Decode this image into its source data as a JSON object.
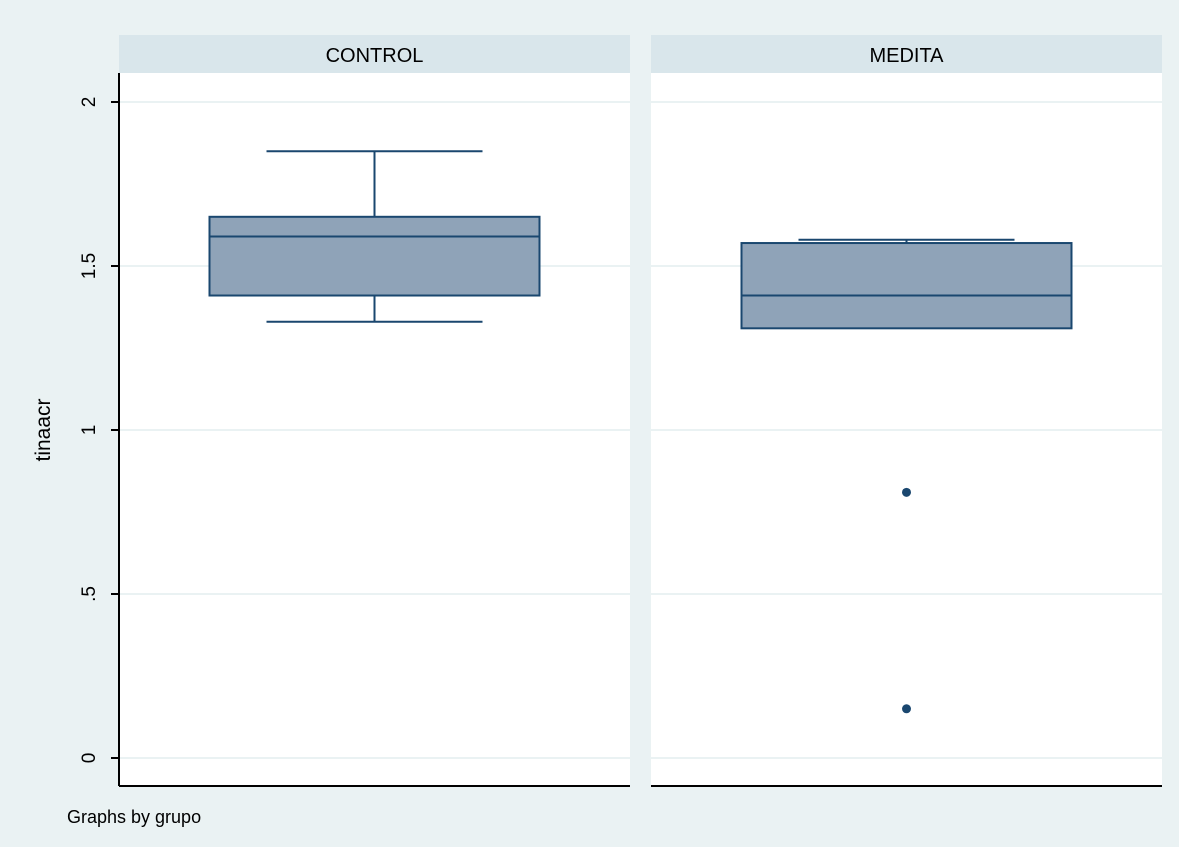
{
  "chart_data": {
    "type": "box",
    "ylabel": "tinaacr",
    "ylim": [
      0,
      2.1
    ],
    "yticks": [
      0,
      0.5,
      1,
      1.5,
      2
    ],
    "ytick_labels": [
      "0",
      ".5",
      "1",
      "1.5",
      "2"
    ],
    "grid": true,
    "note": "Graphs by grupo",
    "panels": [
      {
        "title": "CONTROL",
        "box": {
          "whisker_low": 1.33,
          "q1": 1.41,
          "median": 1.59,
          "q3": 1.65,
          "whisker_high": 1.85
        },
        "outliers": []
      },
      {
        "title": "MEDITA",
        "box": {
          "whisker_low": 1.31,
          "q1": 1.31,
          "median": 1.41,
          "q3": 1.57,
          "whisker_high": 1.58
        },
        "outliers": [
          0.81,
          0.15
        ]
      }
    ]
  },
  "colors": {
    "outer_background": "#eaf2f3",
    "panel_header": "#d9e6eb",
    "plot_background": "#ffffff",
    "gridline": "#eaf2f3",
    "box_fill": "#8fa3b8",
    "box_stroke": "#1a476f",
    "axis": "#000000",
    "text": "#000000"
  }
}
